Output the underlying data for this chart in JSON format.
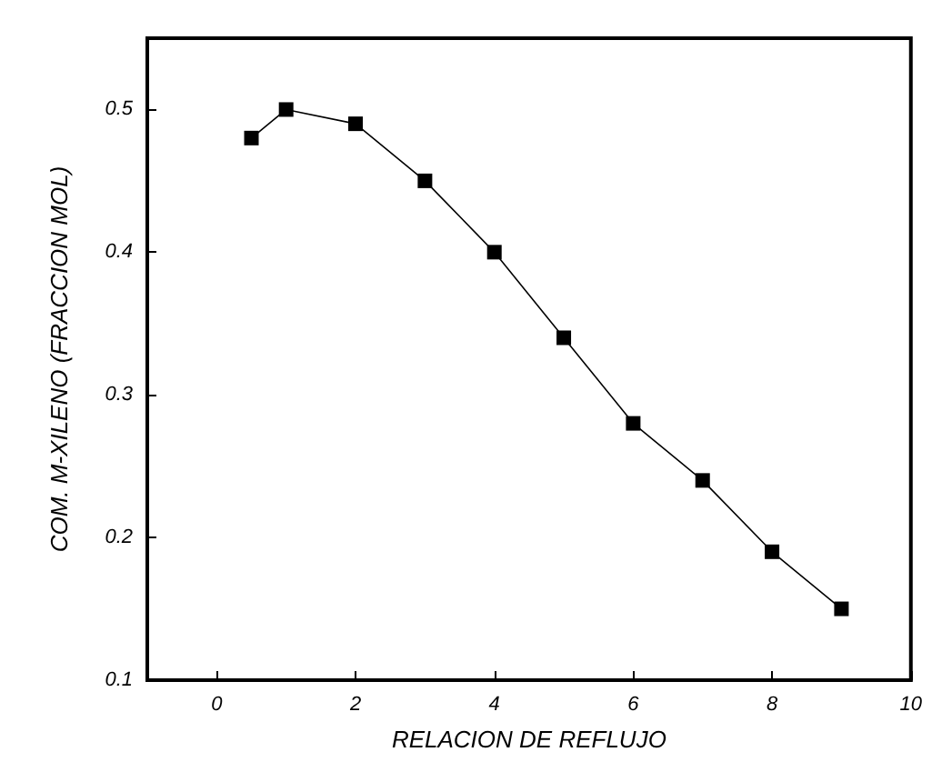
{
  "chart_data": {
    "type": "line",
    "xlabel": "RELACION DE REFLUJO",
    "ylabel": "COM. M-XILENO (FRACCION MOL)",
    "x": [
      0.5,
      1,
      2,
      3,
      4,
      5,
      6,
      7,
      8,
      9
    ],
    "series": [
      {
        "color": "#000000",
        "values": [
          0.48,
          0.5,
          0.49,
          0.45,
          0.4,
          0.34,
          0.28,
          0.24,
          0.19,
          0.15
        ]
      }
    ],
    "xlim": [
      -1,
      10
    ],
    "xticks": [
      0,
      2,
      4,
      6,
      8,
      10
    ],
    "ylim": [
      0.1,
      0.55
    ],
    "yticks": [
      0.1,
      0.2,
      0.3,
      0.4,
      0.5
    ],
    "grid": false,
    "marker": "square",
    "line_style": "solid"
  }
}
